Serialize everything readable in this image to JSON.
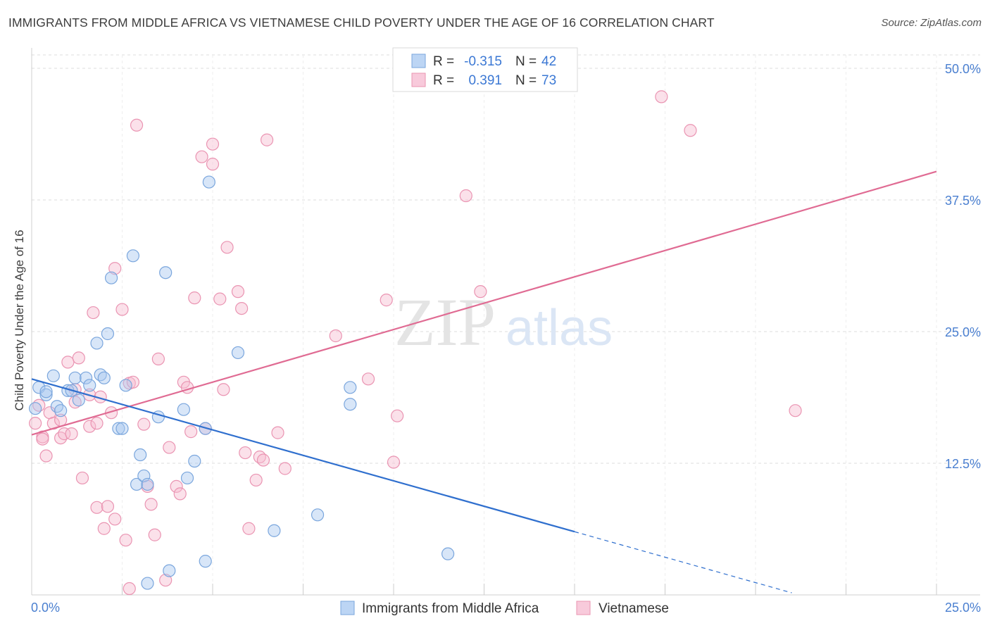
{
  "header": {
    "title": "IMMIGRANTS FROM MIDDLE AFRICA VS VIETNAMESE CHILD POVERTY UNDER THE AGE OF 16 CORRELATION CHART",
    "source": "Source: ZipAtlas.com"
  },
  "watermark": {
    "zip": "ZIP",
    "atlas": "atlas"
  },
  "colors": {
    "blue_fill": "#a9c8f0",
    "blue_stroke": "#7aa6dd",
    "blue_line": "#2f6fce",
    "pink_fill": "#f6bcd0",
    "pink_stroke": "#ea94b2",
    "pink_line": "#e06b93",
    "tick_label": "#4a7fd0",
    "grid": "#dddddd"
  },
  "chart_data": {
    "type": "scatter",
    "title": "IMMIGRANTS FROM MIDDLE AFRICA VS VIETNAMESE CHILD POVERTY UNDER THE AGE OF 16 CORRELATION CHART",
    "xlabel": "",
    "ylabel": "Child Poverty Under the Age of 16",
    "xlim": [
      0,
      25
    ],
    "ylim": [
      0,
      50
    ],
    "x_tick_labels": [
      "0.0%",
      "25.0%"
    ],
    "y_ticks": [
      12.5,
      25.0,
      37.5,
      50.0
    ],
    "y_tick_labels": [
      "12.5%",
      "25.0%",
      "37.5%",
      "50.0%"
    ],
    "grid": true,
    "legend_top": [
      {
        "r_label": "R =",
        "r_value": "-0.315",
        "n_label": "N =",
        "n_value": "42"
      },
      {
        "r_label": "R =",
        "r_value": "0.391",
        "n_label": "N =",
        "n_value": "73"
      }
    ],
    "series": [
      {
        "name": "Immigrants from Middle Africa",
        "color": "blue",
        "trend": {
          "x0": 0,
          "y0": 20.5,
          "x1": 15,
          "y1": 6.0,
          "dash_to_x": 21.0,
          "dash_to_y": 0.2
        },
        "points": [
          [
            0.1,
            17.7
          ],
          [
            0.2,
            19.7
          ],
          [
            0.4,
            19.0
          ],
          [
            0.4,
            19.3
          ],
          [
            0.6,
            20.8
          ],
          [
            0.7,
            17.9
          ],
          [
            0.8,
            17.5
          ],
          [
            1.0,
            19.4
          ],
          [
            1.1,
            19.4
          ],
          [
            1.2,
            20.6
          ],
          [
            1.3,
            18.5
          ],
          [
            1.5,
            20.6
          ],
          [
            1.6,
            19.9
          ],
          [
            1.8,
            23.9
          ],
          [
            1.9,
            20.9
          ],
          [
            2.0,
            20.6
          ],
          [
            2.1,
            24.8
          ],
          [
            2.2,
            30.1
          ],
          [
            2.4,
            15.8
          ],
          [
            2.5,
            15.8
          ],
          [
            2.6,
            19.9
          ],
          [
            2.8,
            32.2
          ],
          [
            2.9,
            10.5
          ],
          [
            3.0,
            13.3
          ],
          [
            3.1,
            11.3
          ],
          [
            3.2,
            10.5
          ],
          [
            3.5,
            16.9
          ],
          [
            3.7,
            30.6
          ],
          [
            4.2,
            17.6
          ],
          [
            4.3,
            11.1
          ],
          [
            4.5,
            12.7
          ],
          [
            4.8,
            3.2
          ],
          [
            4.8,
            15.8
          ],
          [
            4.9,
            39.2
          ],
          [
            5.7,
            23.0
          ],
          [
            6.7,
            6.1
          ],
          [
            7.9,
            7.6
          ],
          [
            8.8,
            19.7
          ],
          [
            8.8,
            18.1
          ],
          [
            11.5,
            3.9
          ],
          [
            3.8,
            2.3
          ],
          [
            3.2,
            1.1
          ]
        ]
      },
      {
        "name": "Vietnamese",
        "color": "pink",
        "trend": {
          "x0": 0,
          "y0": 15.2,
          "x1": 25,
          "y1": 40.2
        },
        "points": [
          [
            0.1,
            16.3
          ],
          [
            0.2,
            18.0
          ],
          [
            0.3,
            15.0
          ],
          [
            0.3,
            14.8
          ],
          [
            0.4,
            13.2
          ],
          [
            0.5,
            17.3
          ],
          [
            0.6,
            16.3
          ],
          [
            0.8,
            16.6
          ],
          [
            0.8,
            14.9
          ],
          [
            0.9,
            15.3
          ],
          [
            1.0,
            22.1
          ],
          [
            1.1,
            15.3
          ],
          [
            1.2,
            18.3
          ],
          [
            1.3,
            22.5
          ],
          [
            1.4,
            11.1
          ],
          [
            1.6,
            19.0
          ],
          [
            1.6,
            16.0
          ],
          [
            1.7,
            26.8
          ],
          [
            1.8,
            8.3
          ],
          [
            1.8,
            16.3
          ],
          [
            1.9,
            18.8
          ],
          [
            2.0,
            6.3
          ],
          [
            2.1,
            8.4
          ],
          [
            2.2,
            17.3
          ],
          [
            2.3,
            7.2
          ],
          [
            2.3,
            31.0
          ],
          [
            2.5,
            27.1
          ],
          [
            2.6,
            5.2
          ],
          [
            2.7,
            20.1
          ],
          [
            2.7,
            0.6
          ],
          [
            2.8,
            20.2
          ],
          [
            2.9,
            44.6
          ],
          [
            3.1,
            16.2
          ],
          [
            3.2,
            10.3
          ],
          [
            3.3,
            8.6
          ],
          [
            3.4,
            5.7
          ],
          [
            3.5,
            22.4
          ],
          [
            3.7,
            1.4
          ],
          [
            3.8,
            14.0
          ],
          [
            4.0,
            10.3
          ],
          [
            4.1,
            9.6
          ],
          [
            4.2,
            20.2
          ],
          [
            4.3,
            19.7
          ],
          [
            4.4,
            15.5
          ],
          [
            4.5,
            28.2
          ],
          [
            4.7,
            41.6
          ],
          [
            4.8,
            15.8
          ],
          [
            5.0,
            40.9
          ],
          [
            5.0,
            42.8
          ],
          [
            5.2,
            28.1
          ],
          [
            5.3,
            19.5
          ],
          [
            5.4,
            33.0
          ],
          [
            5.7,
            28.8
          ],
          [
            5.8,
            27.2
          ],
          [
            5.9,
            13.5
          ],
          [
            6.0,
            6.3
          ],
          [
            6.2,
            10.9
          ],
          [
            6.3,
            13.1
          ],
          [
            6.4,
            12.8
          ],
          [
            6.5,
            43.2
          ],
          [
            6.8,
            15.4
          ],
          [
            7.0,
            12.0
          ],
          [
            8.4,
            24.6
          ],
          [
            9.3,
            20.5
          ],
          [
            9.8,
            28.0
          ],
          [
            10.0,
            12.6
          ],
          [
            10.1,
            17.0
          ],
          [
            12.0,
            37.9
          ],
          [
            12.4,
            28.8
          ],
          [
            17.4,
            47.3
          ],
          [
            18.2,
            44.1
          ],
          [
            21.1,
            17.5
          ],
          [
            1.2,
            19.5
          ]
        ]
      }
    ]
  }
}
